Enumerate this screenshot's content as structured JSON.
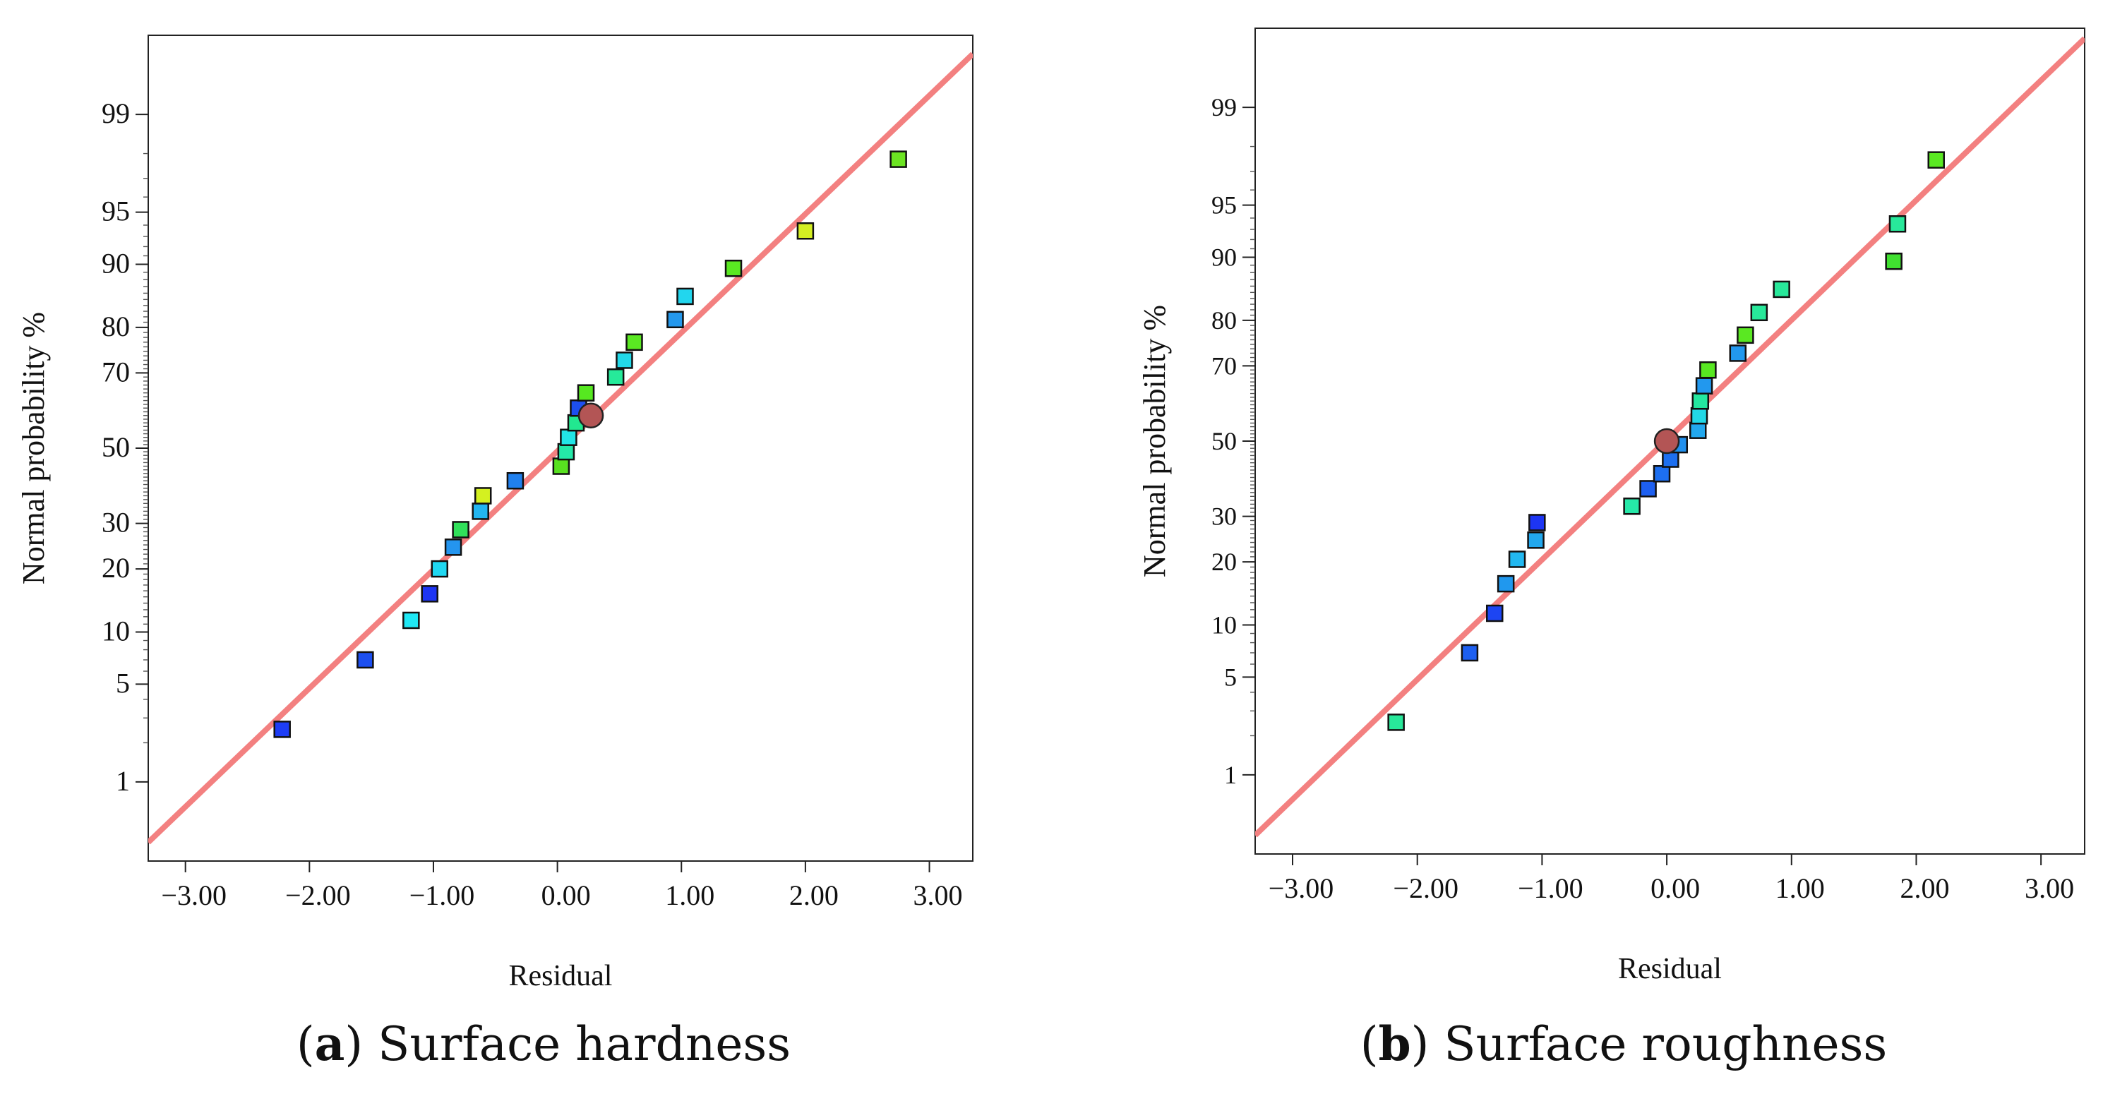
{
  "chart_data": [
    {
      "type": "scatter",
      "subtype": "normal-probability-plot",
      "caption_letter": "a",
      "caption_text": "Surface hardness",
      "xlabel": "Residual",
      "ylabel": "Normal probability %",
      "xlim": [
        -3.3,
        3.35
      ],
      "x_ticks": [
        -3,
        -2,
        -1,
        0,
        1,
        2,
        3
      ],
      "x_tick_labels": [
        "−3.00",
        "−2.00",
        "−1.00",
        "0.00",
        "1.00",
        "2.00",
        "3.00"
      ],
      "y_ticks": [
        1,
        5,
        10,
        20,
        30,
        50,
        70,
        80,
        90,
        95,
        99
      ],
      "y_tick_labels": [
        "1",
        "5",
        "10",
        "20",
        "30",
        "50",
        "70",
        "80",
        "90",
        "95",
        "99"
      ],
      "y_range_percent": [
        0.2,
        99.8
      ],
      "fit_line": {
        "color": "#f38080",
        "points": [
          [
            -3.3,
            0.3
          ],
          [
            3.35,
            99.7
          ]
        ]
      },
      "points": [
        {
          "x": -2.22,
          "y": 2.5,
          "color": "#1d3df5"
        },
        {
          "x": -1.55,
          "y": 7.0,
          "color": "#1c4ff0"
        },
        {
          "x": -1.18,
          "y": 11.5,
          "color": "#20e8f5"
        },
        {
          "x": -1.03,
          "y": 15.5,
          "color": "#1d35f3"
        },
        {
          "x": -0.95,
          "y": 20.0,
          "color": "#20d8f2"
        },
        {
          "x": -0.84,
          "y": 24.5,
          "color": "#2495ef"
        },
        {
          "x": -0.78,
          "y": 28.5,
          "color": "#30e05a"
        },
        {
          "x": -0.62,
          "y": 33.0,
          "color": "#22b5f0"
        },
        {
          "x": -0.6,
          "y": 37.0,
          "color": "#d4f020"
        },
        {
          "x": -0.34,
          "y": 41.0,
          "color": "#2080ee"
        },
        {
          "x": 0.03,
          "y": 45.0,
          "color": "#58e020"
        },
        {
          "x": 0.07,
          "y": 49.0,
          "color": "#24e8a8"
        },
        {
          "x": 0.09,
          "y": 53.0,
          "color": "#22e4e6"
        },
        {
          "x": 0.15,
          "y": 57.0,
          "color": "#22e890"
        },
        {
          "x": 0.17,
          "y": 61.0,
          "color": "#1d4ff0"
        },
        {
          "x": 0.23,
          "y": 65.0,
          "color": "#56e820"
        },
        {
          "x": 0.47,
          "y": 69.0,
          "color": "#26ea9a"
        },
        {
          "x": 0.54,
          "y": 73.0,
          "color": "#22d8e8"
        },
        {
          "x": 0.62,
          "y": 77.0,
          "color": "#5ae822"
        },
        {
          "x": 0.95,
          "y": 81.5,
          "color": "#2498ec"
        },
        {
          "x": 1.03,
          "y": 85.5,
          "color": "#22d6ee"
        },
        {
          "x": 1.42,
          "y": 89.5,
          "color": "#5ae822"
        },
        {
          "x": 2.0,
          "y": 93.5,
          "color": "#d4ee22"
        },
        {
          "x": 2.75,
          "y": 97.8,
          "color": "#6ce422"
        }
      ],
      "marker_point": {
        "x": 0.27,
        "y": 59.0,
        "color": "#b35555"
      }
    },
    {
      "type": "scatter",
      "subtype": "normal-probability-plot",
      "caption_letter": "b",
      "caption_text": "Surface roughness",
      "xlabel": "Residual",
      "ylabel": "Normal probability %",
      "xlim": [
        -3.3,
        3.35
      ],
      "x_ticks": [
        -3,
        -2,
        -1,
        0,
        1,
        2,
        3
      ],
      "x_tick_labels": [
        "−3.00",
        "−2.00",
        "−1.00",
        "0.00",
        "1.00",
        "2.00",
        "3.00"
      ],
      "y_ticks": [
        1,
        5,
        10,
        20,
        30,
        50,
        70,
        80,
        90,
        95,
        99
      ],
      "y_tick_labels": [
        "1",
        "5",
        "10",
        "20",
        "30",
        "50",
        "70",
        "80",
        "90",
        "95",
        "99"
      ],
      "y_range_percent": [
        0.2,
        99.8
      ],
      "fit_line": {
        "color": "#f38080",
        "points": [
          [
            -3.3,
            0.3
          ],
          [
            3.35,
            99.75
          ]
        ]
      },
      "points": [
        {
          "x": -2.17,
          "y": 2.5,
          "color": "#28e89a"
        },
        {
          "x": -1.58,
          "y": 7.0,
          "color": "#1d5ff0"
        },
        {
          "x": -1.38,
          "y": 11.5,
          "color": "#1d45f3"
        },
        {
          "x": -1.29,
          "y": 16.0,
          "color": "#2098ee"
        },
        {
          "x": -1.2,
          "y": 20.5,
          "color": "#22b8f0"
        },
        {
          "x": -1.05,
          "y": 24.5,
          "color": "#22a8ee"
        },
        {
          "x": -1.04,
          "y": 28.5,
          "color": "#1d35f3"
        },
        {
          "x": -0.28,
          "y": 32.5,
          "color": "#26e8a8"
        },
        {
          "x": -0.15,
          "y": 37.0,
          "color": "#1d5ff0"
        },
        {
          "x": -0.04,
          "y": 41.0,
          "color": "#1d6ff0"
        },
        {
          "x": 0.03,
          "y": 45.0,
          "color": "#1d6ff0"
        },
        {
          "x": 0.1,
          "y": 49.0,
          "color": "#2090ee"
        },
        {
          "x": 0.25,
          "y": 53.0,
          "color": "#22a8ee"
        },
        {
          "x": 0.26,
          "y": 57.0,
          "color": "#22d8e6"
        },
        {
          "x": 0.27,
          "y": 61.0,
          "color": "#24e8a0"
        },
        {
          "x": 0.3,
          "y": 65.0,
          "color": "#2298ee"
        },
        {
          "x": 0.33,
          "y": 69.0,
          "color": "#58e822"
        },
        {
          "x": 0.57,
          "y": 73.0,
          "color": "#2298ee"
        },
        {
          "x": 0.63,
          "y": 77.0,
          "color": "#5ae822"
        },
        {
          "x": 0.74,
          "y": 81.5,
          "color": "#28e89a"
        },
        {
          "x": 0.92,
          "y": 85.5,
          "color": "#28e89a"
        },
        {
          "x": 1.82,
          "y": 89.5,
          "color": "#40e030"
        },
        {
          "x": 1.85,
          "y": 93.5,
          "color": "#28e89a"
        },
        {
          "x": 2.16,
          "y": 97.5,
          "color": "#5ae822"
        }
      ],
      "marker_point": {
        "x": 0.0,
        "y": 50.0,
        "color": "#b35555"
      }
    }
  ]
}
